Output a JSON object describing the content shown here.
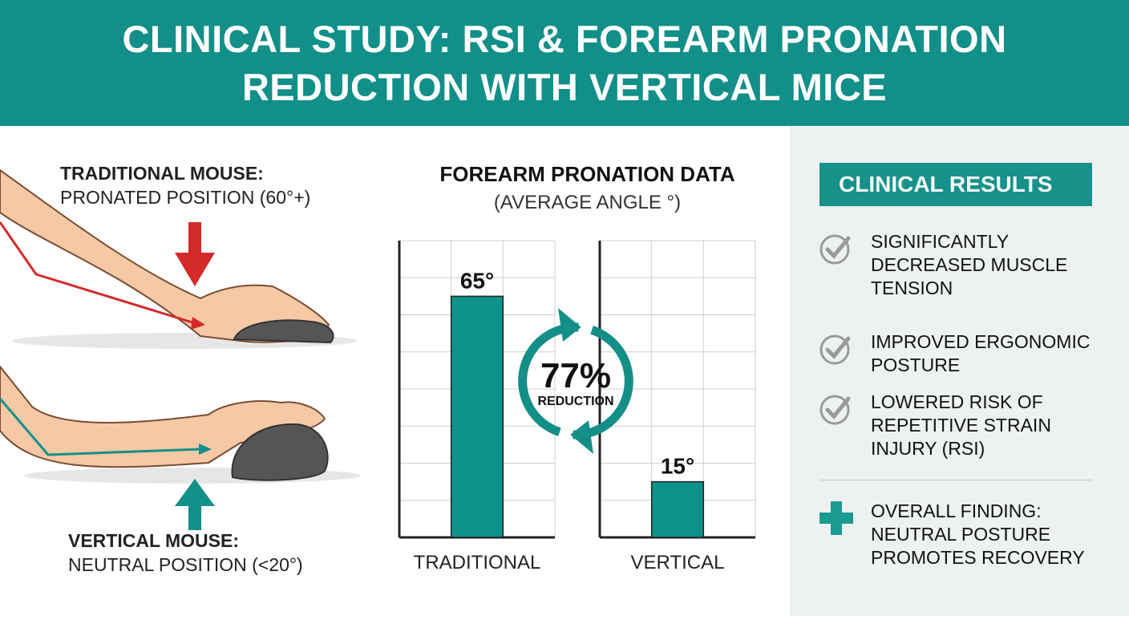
{
  "header": {
    "title": "CLINICAL STUDY: RSI & FOREARM PRONATION REDUCTION WITH VERTICAL MICE"
  },
  "left_panel": {
    "traditional": {
      "title": "TRADITIONAL MOUSE:",
      "desc": "PRONATED POSITION (60°+)"
    },
    "vertical": {
      "title": "VERTICAL MOUSE:",
      "desc": "NEUTRAL POSITION (<20°)"
    },
    "colors": {
      "traditional_arrow": "#d42a2a",
      "vertical_arrow": "#139089"
    }
  },
  "chart_data": {
    "type": "bar",
    "title": "FOREARM PRONATION DATA",
    "subtitle": "(AVERAGE ANGLE °)",
    "categories": [
      "TRADITIONAL",
      "VERTICAL"
    ],
    "values": [
      65,
      15
    ],
    "data_labels": [
      "65°",
      "15°"
    ],
    "ylim": [
      0,
      80
    ],
    "grid": true,
    "bar_color": "#0f928a",
    "annotation": {
      "value": "77%",
      "label": "REDUCTION"
    }
  },
  "results": {
    "title": "CLINICAL RESULTS",
    "items": [
      {
        "icon": "check-circle-icon",
        "text": "SIGNIFICANTLY\nDECREASED MUSCLE\nTENSION"
      },
      {
        "icon": "check-circle-icon",
        "text": "IMPROVED ERGONOMIC\nPOSTURE"
      },
      {
        "icon": "check-circle-icon",
        "text": "LOWERED RISK OF\nREPETITIVE STRAIN\nINJURY (RSI)"
      }
    ],
    "finding": {
      "icon": "medical-cross-icon",
      "text": "OVERALL FINDING:\nNEUTRAL POSTURE\nPROMOTES RECOVERY"
    }
  }
}
